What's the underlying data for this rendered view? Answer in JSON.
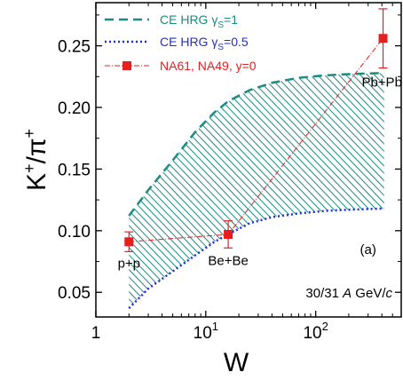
{
  "chart_data": {
    "type": "line",
    "xlabel": "W",
    "ylabel_base": "K",
    "ylabel_over": "π",
    "ylabel_sup": "+",
    "xscale": "log",
    "xlim": [
      1,
      600
    ],
    "ylim": [
      0.03,
      0.285
    ],
    "xticks": [
      {
        "value": 1,
        "label": "1"
      },
      {
        "value": 10,
        "base": "10",
        "exp": "1"
      },
      {
        "value": 100,
        "base": "10",
        "exp": "2"
      }
    ],
    "yticks": [
      {
        "value": 0.05,
        "label": "0.05"
      },
      {
        "value": 0.1,
        "label": "0.10"
      },
      {
        "value": 0.15,
        "label": "0.15"
      },
      {
        "value": 0.2,
        "label": "0.20"
      },
      {
        "value": 0.25,
        "label": "0.25"
      }
    ],
    "series": [
      {
        "name": "CE HRG γs=1",
        "legend_main": "CE HRG γ",
        "legend_sub": "S",
        "legend_tail": "=1",
        "style": "dashed",
        "color": "#1a8c82",
        "x": [
          2,
          3,
          5,
          8,
          12,
          16,
          25,
          40,
          70,
          120,
          200,
          420
        ],
        "y": [
          0.112,
          0.133,
          0.157,
          0.18,
          0.196,
          0.205,
          0.214,
          0.22,
          0.224,
          0.226,
          0.227,
          0.228
        ]
      },
      {
        "name": "CE HRG γs=0.5",
        "legend_main": "CE HRG γ",
        "legend_sub": "S",
        "legend_tail": "=0.5",
        "style": "dotted",
        "color": "#1f2fd6",
        "x": [
          2,
          3,
          5,
          8,
          12,
          16,
          25,
          40,
          70,
          120,
          200,
          420
        ],
        "y": [
          0.037,
          0.053,
          0.067,
          0.08,
          0.091,
          0.097,
          0.106,
          0.111,
          0.114,
          0.116,
          0.117,
          0.118
        ]
      },
      {
        "name": "NA61, NA49, y=0",
        "legend_main": "NA61, NA49, y=0",
        "style": "dash-dot",
        "color": "#e81e1e",
        "marker": "square",
        "x": [
          2,
          16,
          410
        ],
        "y": [
          0.091,
          0.097,
          0.256
        ],
        "yerr": [
          0.008,
          0.011,
          0.024
        ]
      }
    ],
    "annotations": [
      {
        "text": "p+p",
        "x": 2,
        "y": 0.07
      },
      {
        "text": "Be+Be",
        "x": 16,
        "y": 0.072
      },
      {
        "text": "Pb+Pb",
        "x": 400,
        "y": 0.217
      },
      {
        "text": "(a)",
        "x": 300,
        "y": 0.081
      }
    ],
    "energy_prefix": "30/31 ",
    "energy_A": "A",
    "energy_unit": " GeV/",
    "energy_c": "c",
    "colors": {
      "hatch": "#1a8c82",
      "frame": "#000000"
    }
  }
}
